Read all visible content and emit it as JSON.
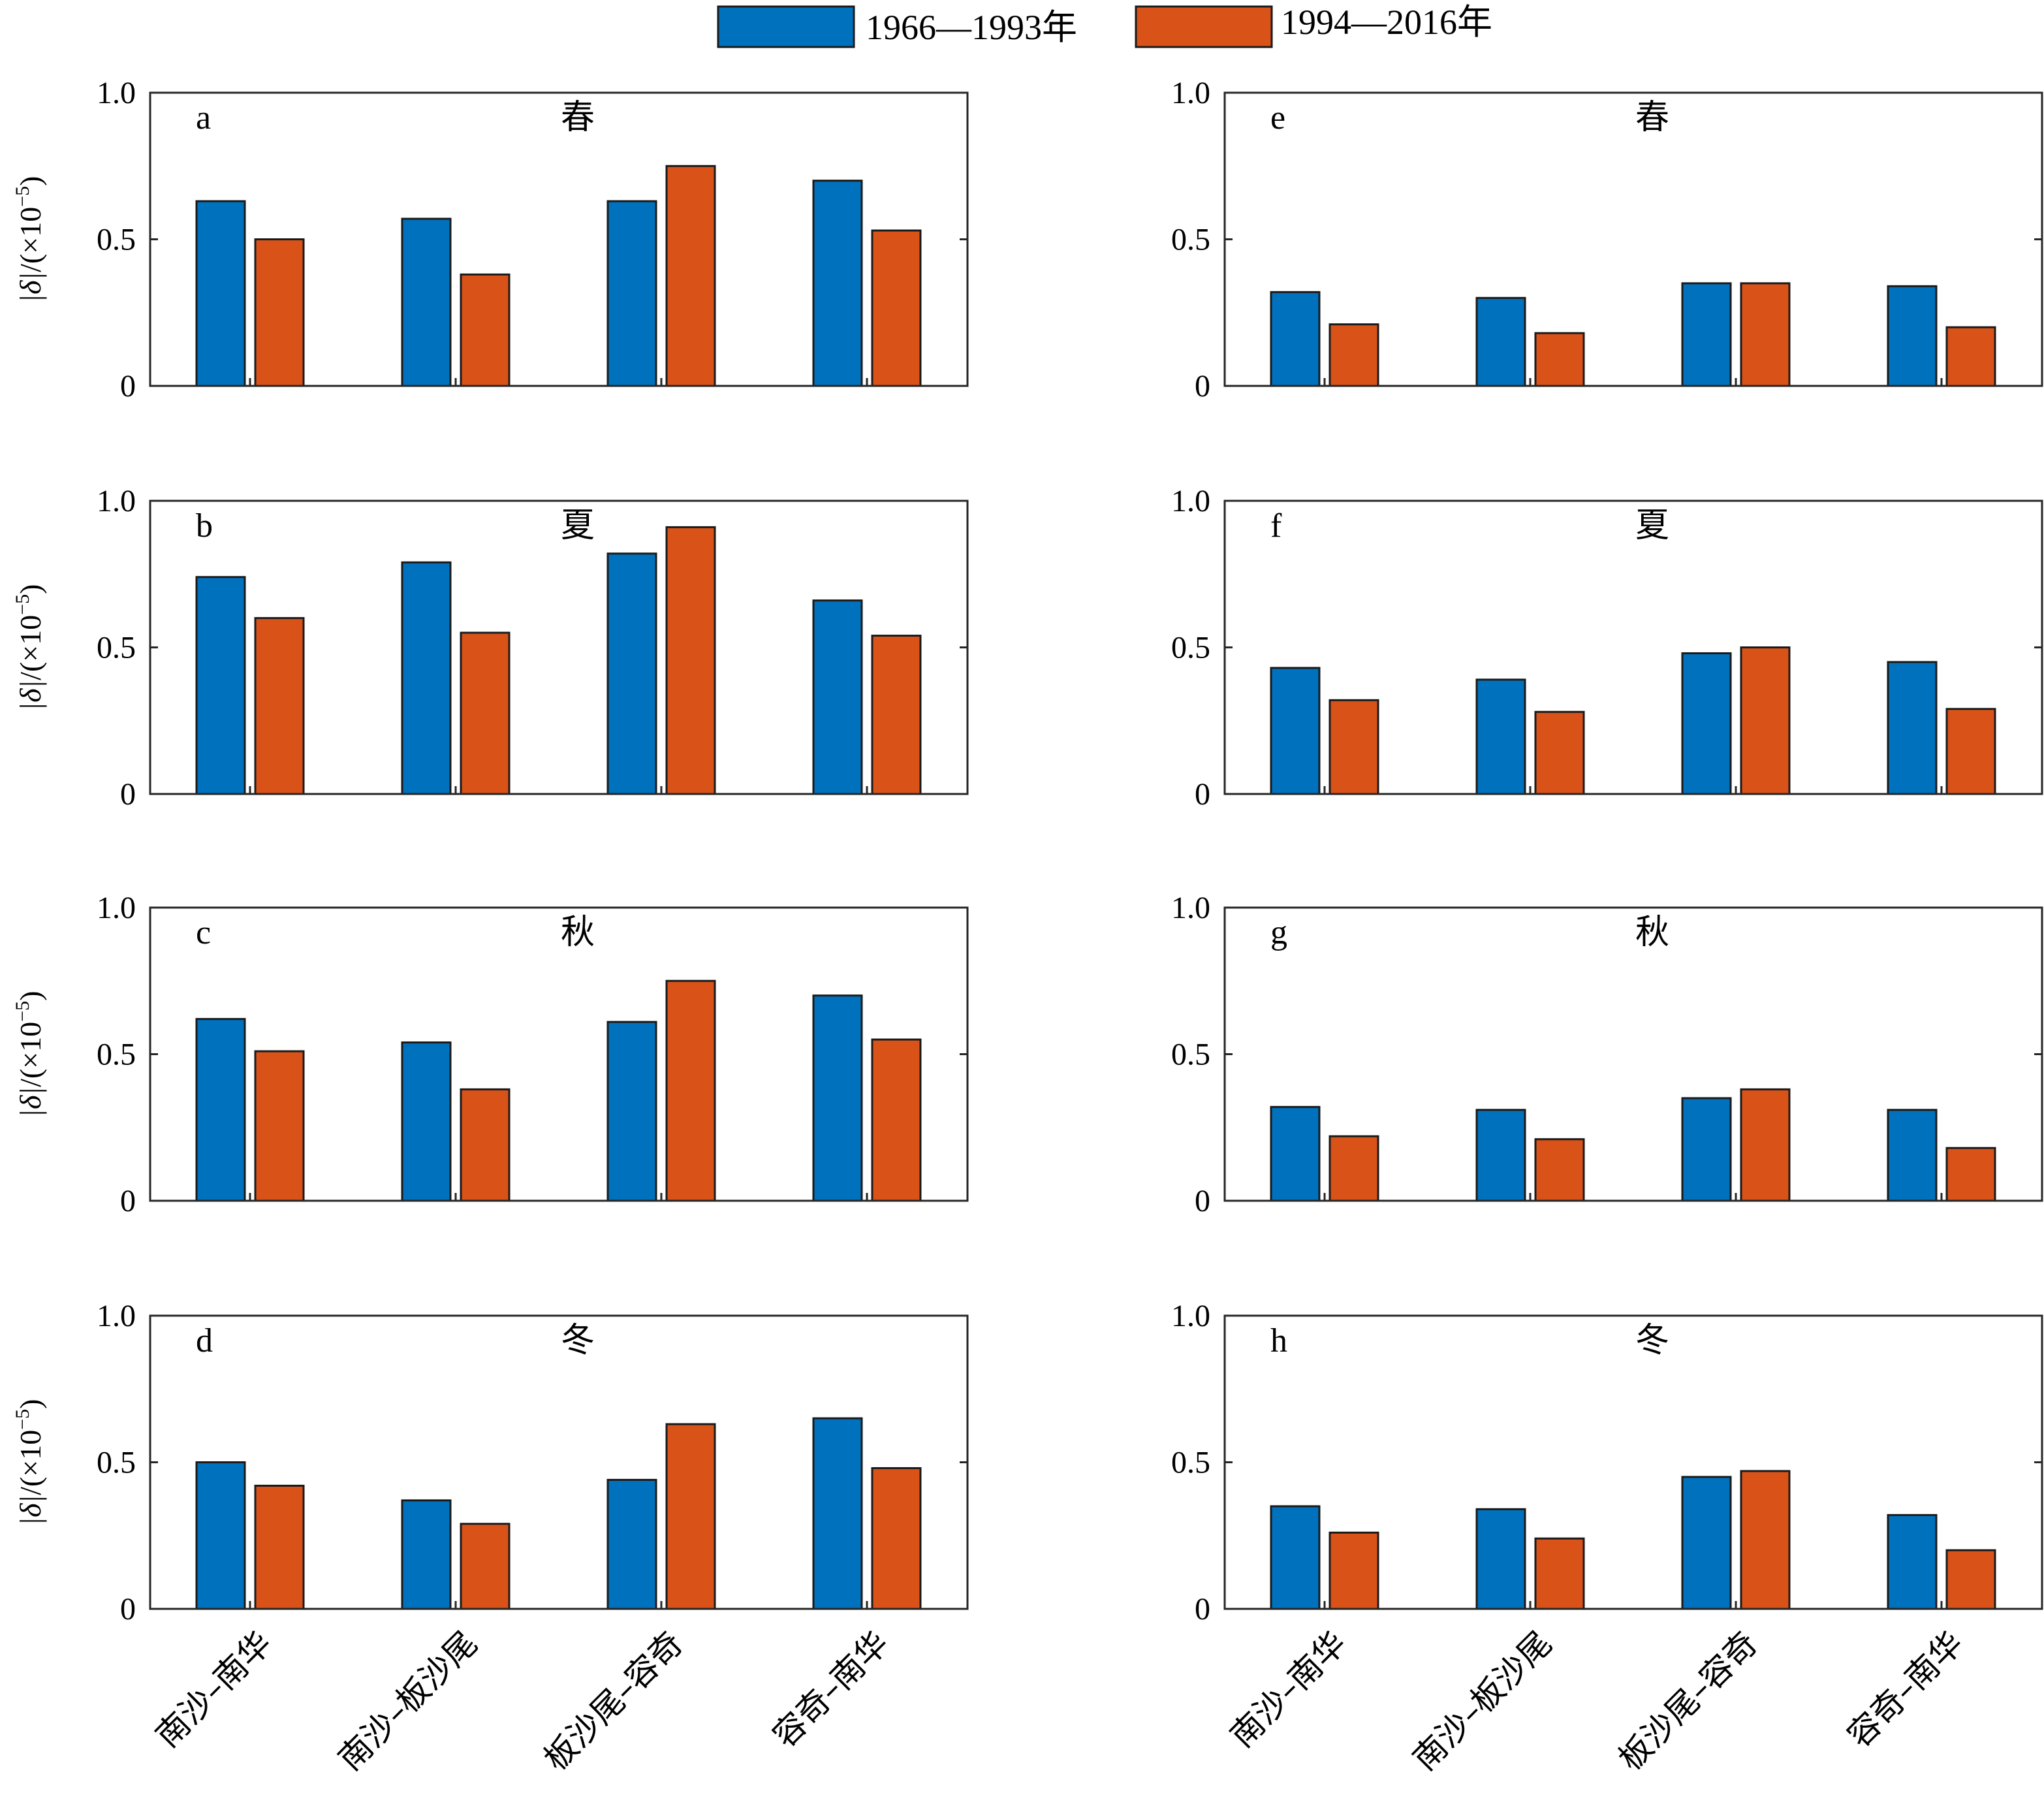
{
  "legend": {
    "series": [
      {
        "name": "1966—1993年",
        "color": "#0072BD"
      },
      {
        "name": "1994—2016年",
        "color": "#D95319"
      }
    ]
  },
  "ylabel": {
    "abs": "|δ|",
    "prefix": "/(×10",
    "exponent": "−5",
    "suffix": ")"
  },
  "chart_data": [
    {
      "panel": "a",
      "season": "春",
      "type": "bar",
      "categories": [
        "南沙–南华",
        "南沙–板沙尾",
        "板沙尾–容奇",
        "容奇–南华"
      ],
      "ylim": [
        0,
        1.0
      ],
      "yticks": [
        "0",
        "0.5",
        "1.0"
      ],
      "series": [
        {
          "name": "1966—1993年",
          "values": [
            0.63,
            0.57,
            0.63,
            0.7
          ]
        },
        {
          "name": "1994—2016年",
          "values": [
            0.5,
            0.38,
            0.75,
            0.53
          ]
        }
      ]
    },
    {
      "panel": "b",
      "season": "夏",
      "type": "bar",
      "categories": [
        "南沙–南华",
        "南沙–板沙尾",
        "板沙尾–容奇",
        "容奇–南华"
      ],
      "ylim": [
        0,
        1.0
      ],
      "yticks": [
        "0",
        "0.5",
        "1.0"
      ],
      "series": [
        {
          "name": "1966—1993年",
          "values": [
            0.74,
            0.79,
            0.82,
            0.66
          ]
        },
        {
          "name": "1994—2016年",
          "values": [
            0.6,
            0.55,
            0.91,
            0.54
          ]
        }
      ]
    },
    {
      "panel": "c",
      "season": "秋",
      "type": "bar",
      "categories": [
        "南沙–南华",
        "南沙–板沙尾",
        "板沙尾–容奇",
        "容奇–南华"
      ],
      "ylim": [
        0,
        1.0
      ],
      "yticks": [
        "0",
        "0.5",
        "1.0"
      ],
      "series": [
        {
          "name": "1966—1993年",
          "values": [
            0.62,
            0.54,
            0.61,
            0.7
          ]
        },
        {
          "name": "1994—2016年",
          "values": [
            0.51,
            0.38,
            0.75,
            0.55
          ]
        }
      ]
    },
    {
      "panel": "d",
      "season": "冬",
      "type": "bar",
      "categories": [
        "南沙–南华",
        "南沙–板沙尾",
        "板沙尾–容奇",
        "容奇–南华"
      ],
      "ylim": [
        0,
        1.0
      ],
      "yticks": [
        "0",
        "0.5",
        "1.0"
      ],
      "series": [
        {
          "name": "1966—1993年",
          "values": [
            0.5,
            0.37,
            0.44,
            0.65
          ]
        },
        {
          "name": "1994—2016年",
          "values": [
            0.42,
            0.29,
            0.63,
            0.48
          ]
        }
      ]
    },
    {
      "panel": "e",
      "season": "春",
      "type": "bar",
      "categories": [
        "南沙–南华",
        "南沙–板沙尾",
        "板沙尾–容奇",
        "容奇–南华"
      ],
      "ylim": [
        0,
        1.0
      ],
      "yticks": [
        "0",
        "0.5",
        "1.0"
      ],
      "series": [
        {
          "name": "1966—1993年",
          "values": [
            0.32,
            0.3,
            0.35,
            0.34
          ]
        },
        {
          "name": "1994—2016年",
          "values": [
            0.21,
            0.18,
            0.35,
            0.2
          ]
        }
      ]
    },
    {
      "panel": "f",
      "season": "夏",
      "type": "bar",
      "categories": [
        "南沙–南华",
        "南沙–板沙尾",
        "板沙尾–容奇",
        "容奇–南华"
      ],
      "ylim": [
        0,
        1.0
      ],
      "yticks": [
        "0",
        "0.5",
        "1.0"
      ],
      "series": [
        {
          "name": "1966—1993年",
          "values": [
            0.43,
            0.39,
            0.48,
            0.45
          ]
        },
        {
          "name": "1994—2016年",
          "values": [
            0.32,
            0.28,
            0.5,
            0.29
          ]
        }
      ]
    },
    {
      "panel": "g",
      "season": "秋",
      "type": "bar",
      "categories": [
        "南沙–南华",
        "南沙–板沙尾",
        "板沙尾–容奇",
        "容奇–南华"
      ],
      "ylim": [
        0,
        1.0
      ],
      "yticks": [
        "0",
        "0.5",
        "1.0"
      ],
      "series": [
        {
          "name": "1966—1993年",
          "values": [
            0.32,
            0.31,
            0.35,
            0.31
          ]
        },
        {
          "name": "1994—2016年",
          "values": [
            0.22,
            0.21,
            0.38,
            0.18
          ]
        }
      ]
    },
    {
      "panel": "h",
      "season": "冬",
      "type": "bar",
      "categories": [
        "南沙–南华",
        "南沙–板沙尾",
        "板沙尾–容奇",
        "容奇–南华"
      ],
      "ylim": [
        0,
        1.0
      ],
      "yticks": [
        "0",
        "0.5",
        "1.0"
      ],
      "series": [
        {
          "name": "1966—1993年",
          "values": [
            0.35,
            0.34,
            0.45,
            0.32
          ]
        },
        {
          "name": "1994—2016年",
          "values": [
            0.26,
            0.24,
            0.47,
            0.2
          ]
        }
      ]
    }
  ]
}
